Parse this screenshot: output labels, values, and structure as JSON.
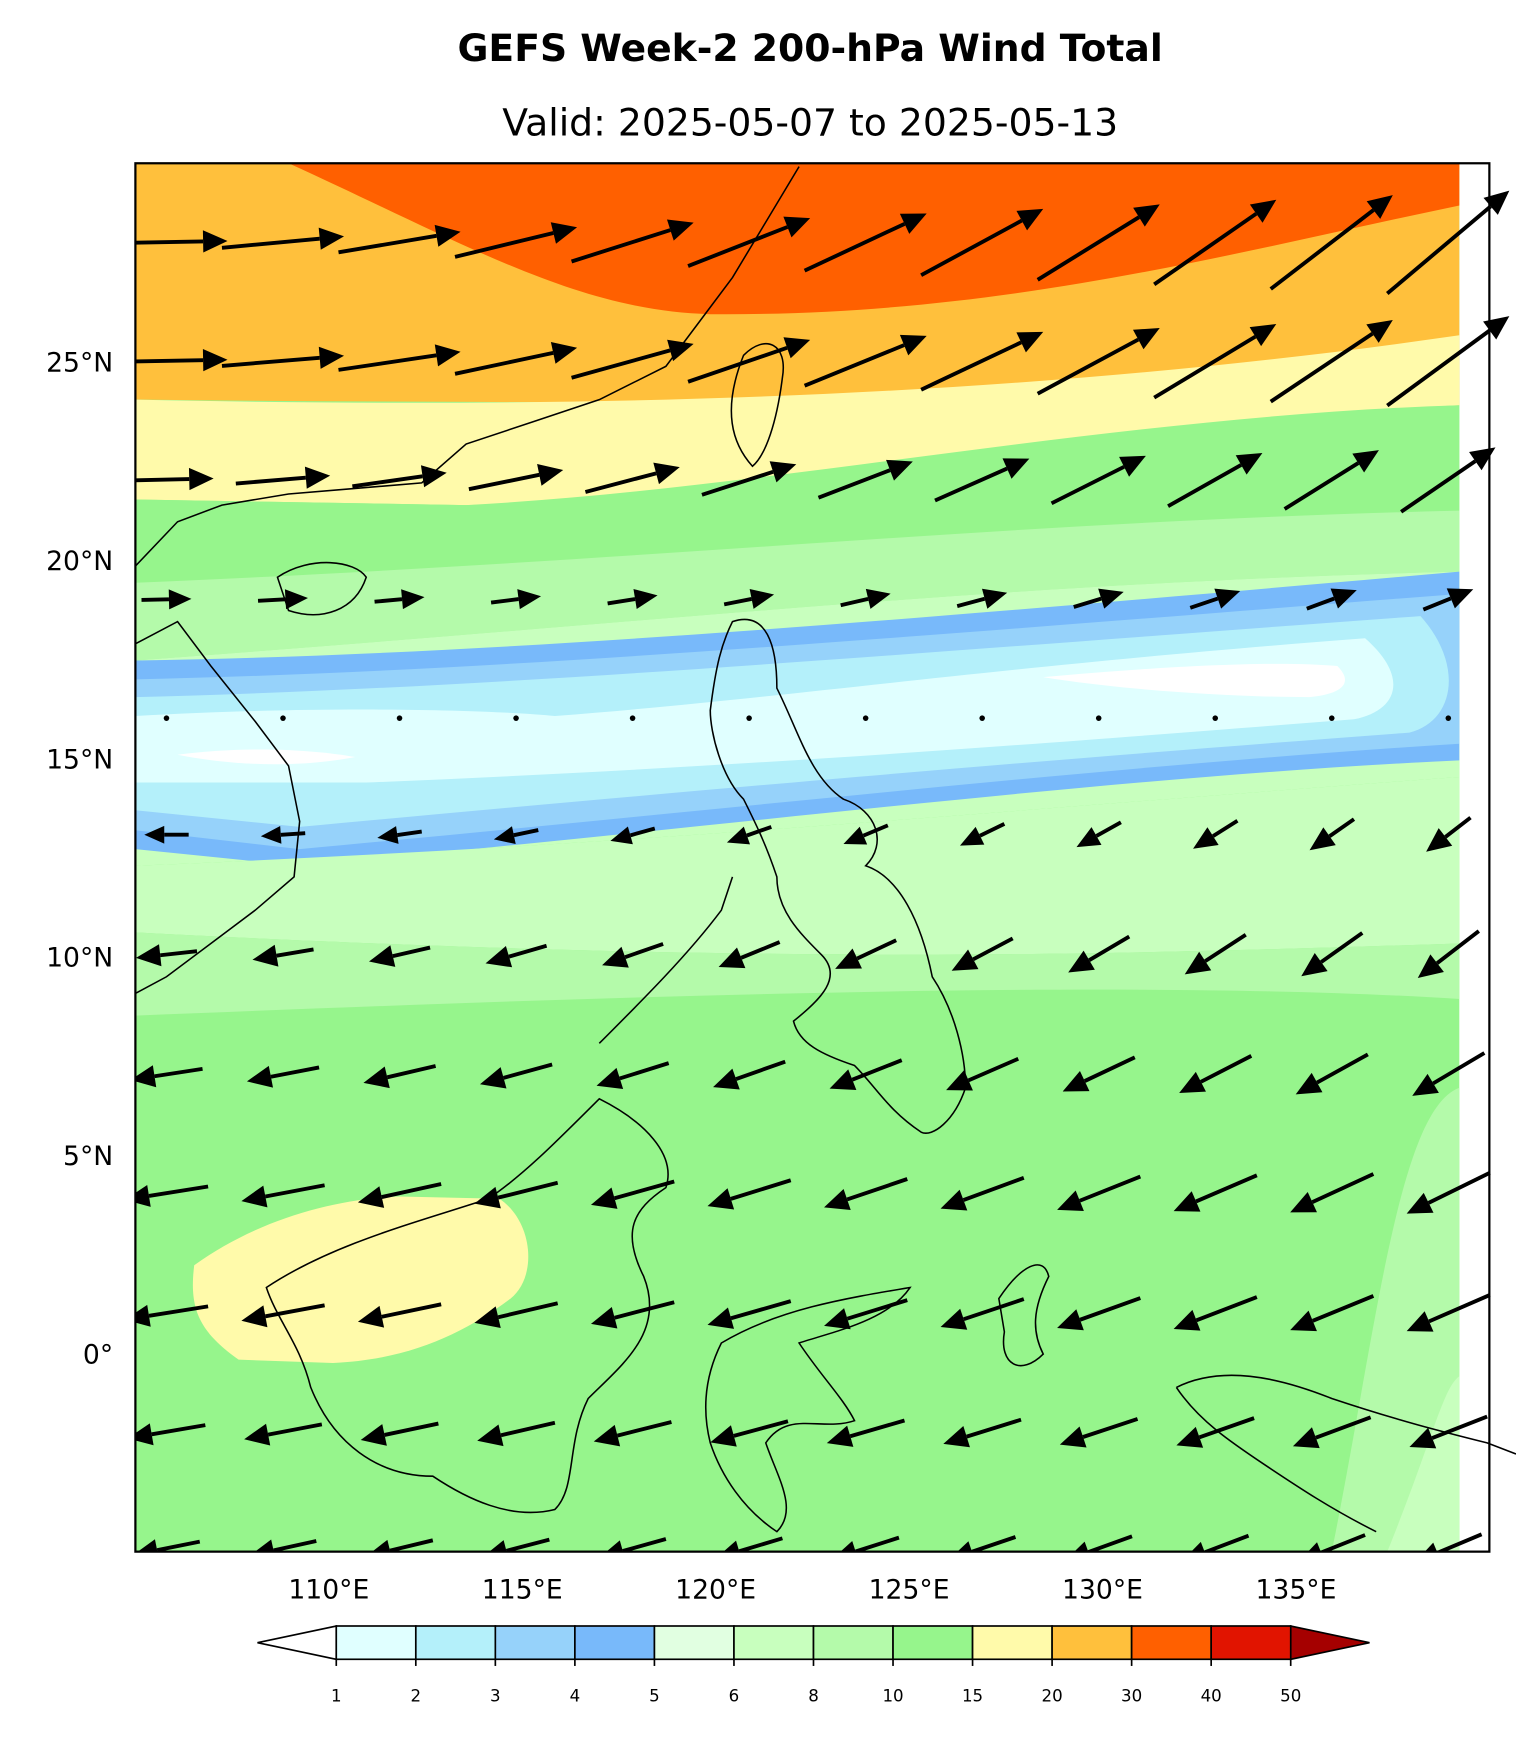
{
  "title": "GEFS Week-2 200-hPa Wind Total",
  "subtitle": "Valid: 2025-05-07 to 2025-05-13",
  "map": {
    "xlim": [
      105,
      140
    ],
    "ylim": [
      -5,
      30
    ],
    "xticks": [
      {
        "value": 110,
        "label": "110°E"
      },
      {
        "value": 115,
        "label": "115°E"
      },
      {
        "value": 120,
        "label": "120°E"
      },
      {
        "value": 125,
        "label": "125°E"
      },
      {
        "value": 130,
        "label": "130°E"
      },
      {
        "value": 135,
        "label": "135°E"
      }
    ],
    "yticks": [
      {
        "value": 0,
        "label": "0°"
      },
      {
        "value": 5,
        "label": "5°N"
      },
      {
        "value": 10,
        "label": "10°N"
      },
      {
        "value": 15,
        "label": "15°N"
      },
      {
        "value": 20,
        "label": "20°N"
      },
      {
        "value": 25,
        "label": "25°N"
      }
    ]
  },
  "colorbar": {
    "levels": [
      1,
      2,
      3,
      4,
      5,
      6,
      8,
      10,
      15,
      20,
      30,
      40,
      50
    ],
    "colors": [
      "#e0ffff",
      "#b4f0fa",
      "#96d2fa",
      "#78b9fa",
      "#e1ffe1",
      "#c8ffbe",
      "#b4faaa",
      "#96f58c",
      "#fffaaa",
      "#ffc03c",
      "#ff6000",
      "#e11400"
    ],
    "under_color": "#ffffff",
    "over_color": "#a50000"
  }
}
